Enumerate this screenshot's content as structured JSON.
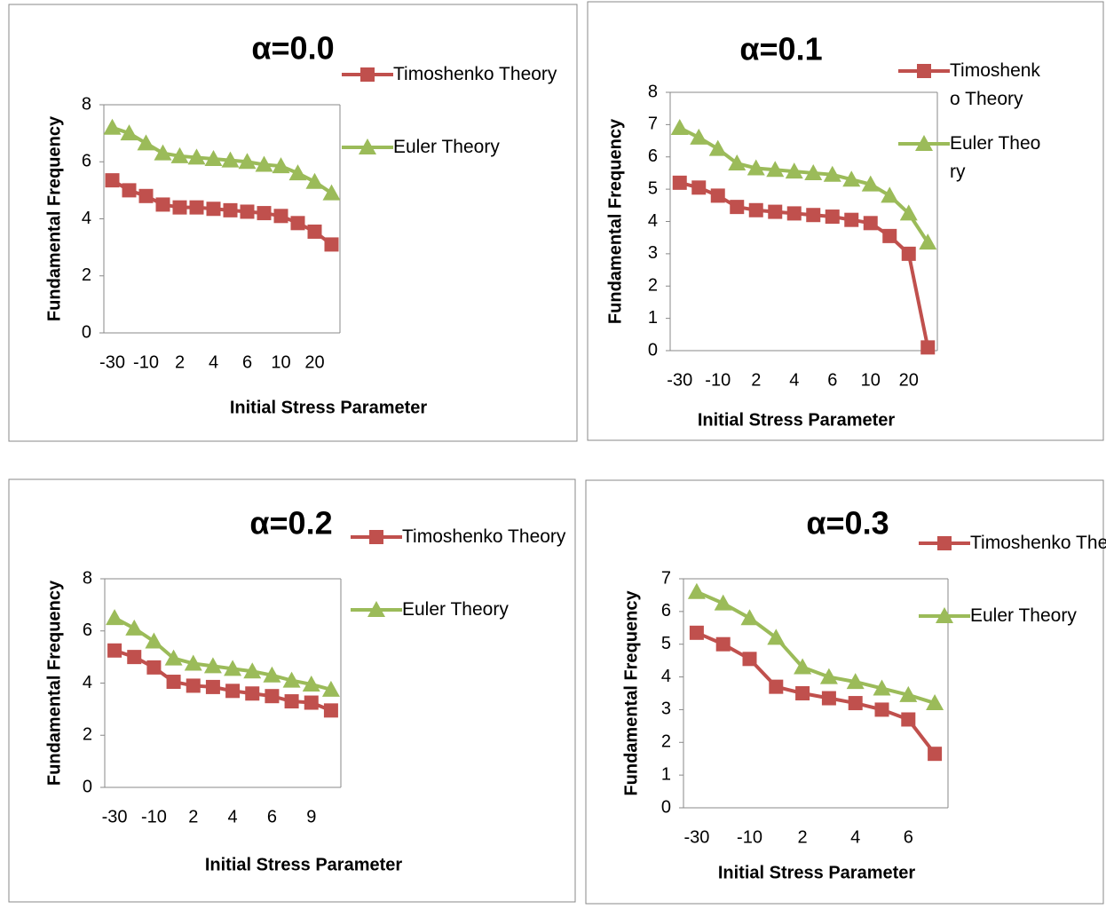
{
  "chart_data": [
    {
      "type": "line",
      "title": "α=0.0",
      "x_label": "Initial Stress Parameter",
      "y_label": "Fundamental Frequency",
      "categories": [
        "-30",
        null,
        "-10",
        null,
        "2",
        null,
        "4",
        null,
        "6",
        null,
        "10",
        null,
        "20",
        null
      ],
      "series": [
        {
          "name": "Timoshenko Theory",
          "color": "#c0504d",
          "marker": "square",
          "values": [
            5.35,
            5.0,
            4.8,
            4.5,
            4.4,
            4.4,
            4.35,
            4.3,
            4.25,
            4.2,
            4.1,
            3.85,
            3.55,
            3.1
          ]
        },
        {
          "name": "Euler Theory",
          "color": "#9bbb59",
          "marker": "triangle",
          "values": [
            7.2,
            7.0,
            6.65,
            6.3,
            6.2,
            6.15,
            6.1,
            6.05,
            6.0,
            5.9,
            5.85,
            5.6,
            5.3,
            4.9
          ]
        }
      ],
      "ylim": [
        0,
        8
      ],
      "yticks": [
        0,
        2,
        4,
        6,
        8
      ],
      "grid": false,
      "legend": "right"
    },
    {
      "type": "line",
      "title": "α=0.1",
      "x_label": "Initial Stress Parameter",
      "y_label": "Fundamental Frequency",
      "categories": [
        "-30",
        null,
        "-10",
        null,
        "2",
        null,
        "4",
        null,
        "6",
        null,
        "10",
        null,
        "20",
        null
      ],
      "series": [
        {
          "name": "Timoshenko Theory",
          "color": "#c0504d",
          "marker": "square",
          "values": [
            5.2,
            5.05,
            4.8,
            4.45,
            4.35,
            4.3,
            4.25,
            4.2,
            4.15,
            4.05,
            3.95,
            3.55,
            3.0,
            0.1
          ]
        },
        {
          "name": "Euler Theory",
          "color": "#9bbb59",
          "marker": "triangle",
          "values": [
            6.9,
            6.6,
            6.25,
            5.8,
            5.65,
            5.6,
            5.55,
            5.5,
            5.45,
            5.3,
            5.15,
            4.8,
            4.25,
            3.35
          ]
        }
      ],
      "ylim": [
        0,
        8
      ],
      "yticks": [
        0,
        1,
        2,
        3,
        4,
        5,
        6,
        7,
        8
      ],
      "grid": false,
      "legend": "right"
    },
    {
      "type": "line",
      "title": "α=0.2",
      "x_label": "Initial Stress Parameter",
      "y_label": "Fundamental Frequency",
      "categories": [
        "-30",
        null,
        "-10",
        null,
        "2",
        null,
        "4",
        null,
        "6",
        null,
        "9",
        null
      ],
      "series": [
        {
          "name": "Timoshenko Theory",
          "color": "#c0504d",
          "marker": "square",
          "values": [
            5.25,
            5.0,
            4.6,
            4.05,
            3.9,
            3.85,
            3.7,
            3.6,
            3.5,
            3.3,
            3.25,
            2.95
          ]
        },
        {
          "name": "Euler Theory",
          "color": "#9bbb59",
          "marker": "triangle",
          "values": [
            6.5,
            6.1,
            5.6,
            4.95,
            4.75,
            4.65,
            4.55,
            4.45,
            4.3,
            4.1,
            3.95,
            3.75
          ]
        }
      ],
      "ylim": [
        0,
        8
      ],
      "yticks": [
        0,
        2,
        4,
        6,
        8
      ],
      "grid": false,
      "legend": "right"
    },
    {
      "type": "line",
      "title": "α=0.3",
      "x_label": "Initial Stress Parameter",
      "y_label": "Fundamental Frequency",
      "categories": [
        "-30",
        null,
        "-10",
        null,
        "2",
        null,
        "4",
        null,
        "6",
        null
      ],
      "series": [
        {
          "name": "Timoshenko Theory",
          "color": "#c0504d",
          "marker": "square",
          "values": [
            5.35,
            5.0,
            4.55,
            3.7,
            3.5,
            3.35,
            3.2,
            3.0,
            2.7,
            1.65
          ]
        },
        {
          "name": "Euler Theory",
          "color": "#9bbb59",
          "marker": "triangle",
          "values": [
            6.6,
            6.25,
            5.8,
            5.2,
            4.3,
            4.0,
            3.85,
            3.65,
            3.45,
            3.2
          ]
        }
      ],
      "ylim": [
        0,
        7
      ],
      "yticks": [
        0,
        1,
        2,
        3,
        4,
        5,
        6,
        7
      ],
      "grid": false,
      "legend": "right"
    }
  ]
}
